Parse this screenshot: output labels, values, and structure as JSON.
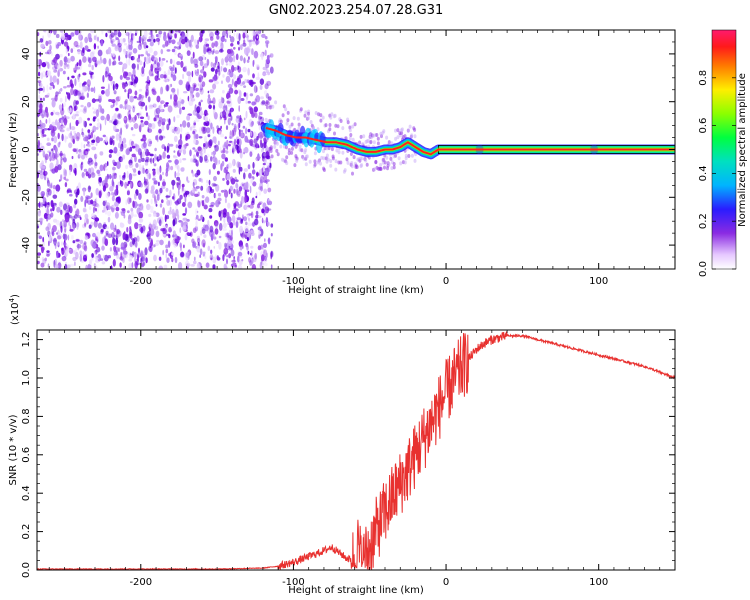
{
  "figure": {
    "title": "GN02.2023.254.07.28.G31"
  },
  "chart_data": [
    {
      "type": "heatmap",
      "xlabel": "Height of straight line (km)",
      "ylabel": "Frequency (Hz)",
      "xlim": [
        -268,
        150
      ],
      "ylim": [
        -50,
        50
      ],
      "xticks": [
        -200,
        -100,
        0,
        100
      ],
      "yticks": [
        -40,
        -20,
        0,
        20,
        40
      ],
      "grid": false,
      "trace": {
        "name": "",
        "x": [
          -118,
          -112,
          -105,
          -98,
          -92,
          -85,
          -78,
          -72,
          -65,
          -58,
          -52,
          -46,
          -40,
          -35,
          -30,
          -25,
          -20,
          -15,
          -10,
          -5,
          0,
          20,
          60,
          100,
          150
        ],
        "y": [
          9,
          8,
          6,
          5,
          5,
          4,
          3,
          3,
          2,
          0,
          -1,
          -1,
          0,
          0,
          1,
          3,
          1,
          -1,
          -2,
          0,
          0,
          0,
          0,
          0,
          0
        ]
      },
      "noise_region_x": [
        -268,
        -118
      ],
      "colorbar": {
        "label": "Normalized spectral amplitude",
        "ticks": [
          0.0,
          0.2,
          0.4,
          0.6,
          0.8
        ],
        "range": [
          0,
          1
        ]
      }
    },
    {
      "type": "line",
      "xlabel": "Height of straight line (km)",
      "ylabel": "SNR (10 * v/v)",
      "scale_label": "(x10",
      "scale_exp": "4",
      "scale_close": ")",
      "xlim": [
        -268,
        150
      ],
      "ylim": [
        0,
        1.25
      ],
      "xticks": [
        -200,
        -100,
        0,
        100
      ],
      "yticks": [
        0.0,
        0.2,
        0.4,
        0.6,
        0.8,
        1.0,
        1.2
      ],
      "grid": false,
      "series": [
        {
          "name": "",
          "color": "#e8312f",
          "x": [
            -268,
            -200,
            -150,
            -120,
            -110,
            -100,
            -90,
            -80,
            -75,
            -70,
            -65,
            -60,
            -58,
            -55,
            -50,
            -45,
            -40,
            -35,
            -30,
            -25,
            -20,
            -15,
            -10,
            -5,
            0,
            5,
            10,
            15,
            20,
            25,
            30,
            40,
            50,
            60,
            70,
            80,
            90,
            100,
            110,
            120,
            130,
            140,
            150
          ],
          "y": [
            0.005,
            0.005,
            0.005,
            0.01,
            0.02,
            0.04,
            0.07,
            0.1,
            0.12,
            0.09,
            0.06,
            0.05,
            0.13,
            0.03,
            0.12,
            0.22,
            0.3,
            0.38,
            0.45,
            0.52,
            0.6,
            0.68,
            0.76,
            0.84,
            0.92,
            0.99,
            1.05,
            1.1,
            1.15,
            1.18,
            1.2,
            1.22,
            1.22,
            1.2,
            1.18,
            1.16,
            1.14,
            1.12,
            1.1,
            1.08,
            1.06,
            1.03,
            1.0
          ]
        }
      ]
    }
  ]
}
